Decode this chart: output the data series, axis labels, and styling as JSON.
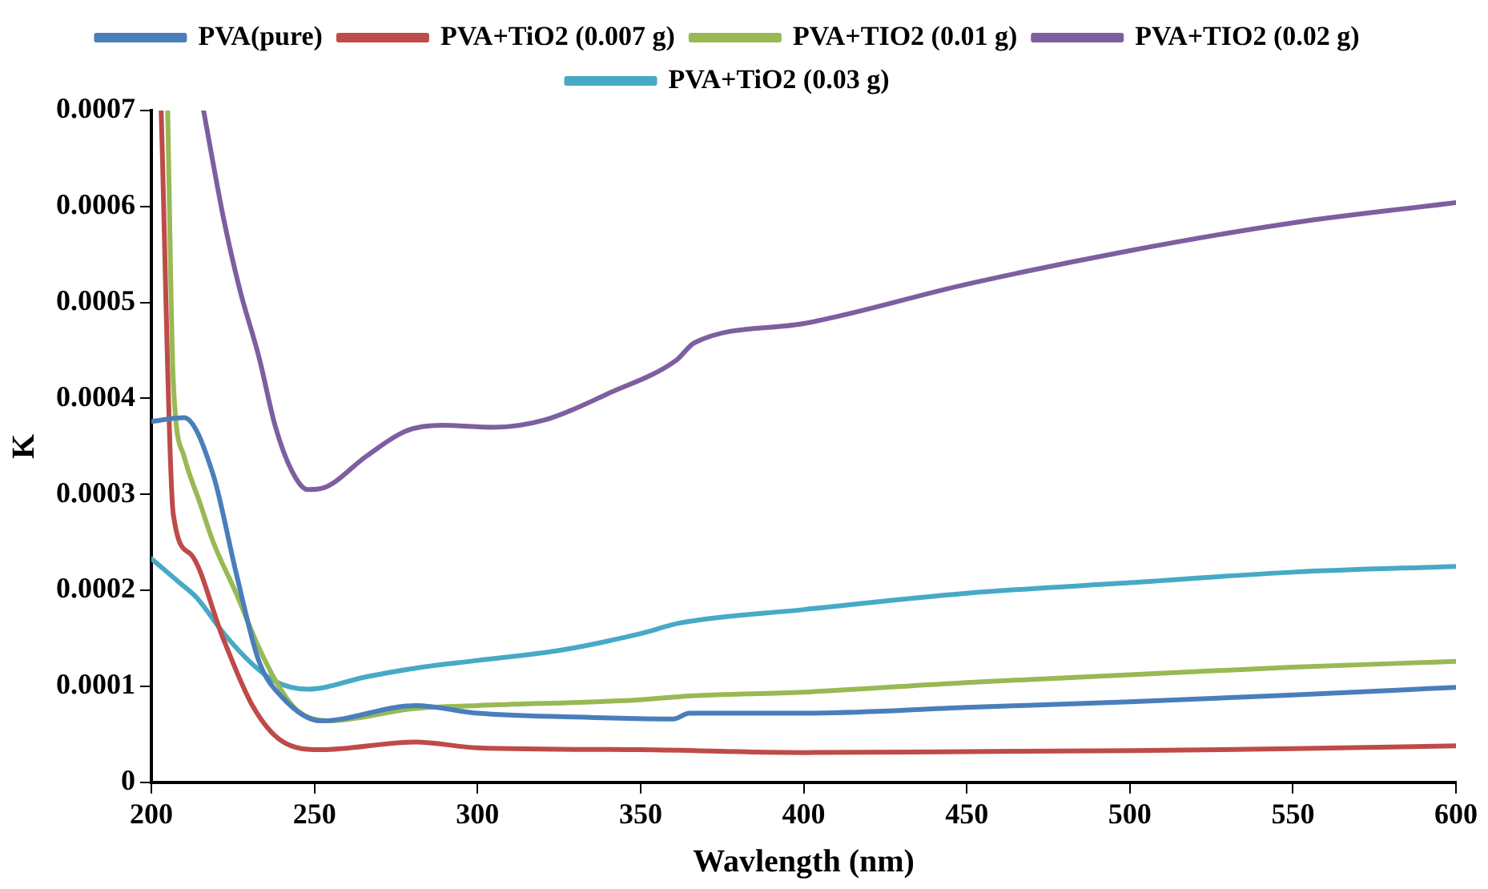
{
  "chart_data": {
    "type": "line",
    "xlabel": "Wavlength (nm)",
    "ylabel": "K",
    "xlim": [
      200,
      600
    ],
    "xticks": [
      200,
      250,
      300,
      350,
      400,
      450,
      500,
      550,
      600
    ],
    "ylim": [
      0,
      0.0007
    ],
    "yticks": [
      0,
      0.0001,
      0.0002,
      0.0003,
      0.0004,
      0.0005,
      0.0006,
      0.0007
    ],
    "grid": false,
    "legend": "top",
    "marker": "none",
    "line_style": "solid",
    "series": [
      {
        "name": "PVA(pure)",
        "color": "#4a7ebb",
        "x": [
          200,
          210,
          219,
          226,
          233,
          240,
          252,
          281,
          300,
          330,
          360,
          365,
          400,
          450,
          500,
          550,
          600
        ],
        "values": [
          0.000376,
          0.00038,
          0.00032,
          0.000218,
          0.000126,
          8.9e-05,
          6.4e-05,
          8e-05,
          7.2e-05,
          6.8e-05,
          6.6e-05,
          7.2e-05,
          7.2e-05,
          7.8e-05,
          8.4e-05,
          9.1e-05,
          9.9e-05
        ]
      },
      {
        "name": "PVA+TiO2 (0.007 g)",
        "color": "#be4b48",
        "x": [
          203,
          206.7,
          212,
          222,
          231,
          240,
          252,
          281,
          300,
          350,
          400,
          450,
          500,
          550,
          600
        ],
        "values": [
          0.0007,
          0.00028,
          0.000238,
          0.00015,
          8e-05,
          4.3e-05,
          3.4e-05,
          4.2e-05,
          3.6e-05,
          3.4e-05,
          3.1e-05,
          3.2e-05,
          3.3e-05,
          3.5e-05,
          3.8e-05
        ]
      },
      {
        "name": "PVA+TIO2 (0.01 g)",
        "color": "#98b954",
        "x": [
          205,
          206.7,
          210,
          215,
          219,
          226,
          233,
          240,
          245,
          254,
          281,
          300,
          350,
          365,
          400,
          450,
          500,
          550,
          600
        ],
        "values": [
          0.0007,
          0.00042,
          0.00034,
          0.00029,
          0.00025,
          0.000197,
          0.00014,
          9.5e-05,
          7.4e-05,
          6.4e-05,
          7.7e-05,
          8e-05,
          8.6e-05,
          9e-05,
          9.4e-05,
          0.000104,
          0.000112,
          0.00012,
          0.000126
        ]
      },
      {
        "name": "PVA+TIO2 (0.02 g)",
        "color": "#7d5fa0",
        "x": [
          216,
          222,
          227,
          233,
          238,
          243,
          248,
          253,
          266,
          278,
          289,
          305,
          321,
          340,
          361,
          366.5,
          400,
          450,
          500,
          550,
          600
        ],
        "values": [
          0.0007,
          0.00059,
          0.000515,
          0.000443,
          0.000371,
          0.000325,
          0.000305,
          0.000307,
          0.00034,
          0.000366,
          0.000372,
          0.00037,
          0.000378,
          0.000405,
          0.00044,
          0.000458,
          0.000478,
          0.000519,
          0.000554,
          0.000583,
          0.000604
        ]
      },
      {
        "name": "PVA+TiO2 (0.03 g)",
        "color": "#46aac5",
        "x": [
          200,
          209,
          214,
          222,
          231,
          238,
          248,
          266,
          283,
          300,
          326,
          350,
          362,
          400,
          450,
          500,
          550,
          600
        ],
        "values": [
          0.000233,
          0.000207,
          0.000192,
          0.000156,
          0.000123,
          0.000105,
          9.7e-05,
          0.00011,
          0.00012,
          0.000127,
          0.000138,
          0.000155,
          0.000166,
          0.00018,
          0.000197,
          0.000208,
          0.000219,
          0.000225
        ]
      }
    ]
  }
}
